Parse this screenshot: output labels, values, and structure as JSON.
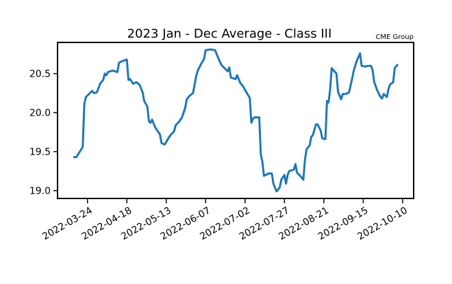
{
  "chart_data": {
    "type": "line",
    "title": "2023 Jan - Dec Average - Class III",
    "annotation": "CME Group",
    "x": [
      "2022-03-15",
      "2022-03-17",
      "2022-03-21",
      "2022-03-22",
      "2022-03-23",
      "2022-03-24",
      "2022-03-27",
      "2022-03-28",
      "2022-03-30",
      "2022-04-01",
      "2022-04-03",
      "2022-04-04",
      "2022-04-05",
      "2022-04-06",
      "2022-04-09",
      "2022-04-12",
      "2022-04-13",
      "2022-04-15",
      "2022-04-18",
      "2022-04-19",
      "2022-04-20",
      "2022-04-22",
      "2022-04-24",
      "2022-04-26",
      "2022-04-28",
      "2022-04-29",
      "2022-05-01",
      "2022-05-02",
      "2022-05-03",
      "2022-05-04",
      "2022-05-06",
      "2022-05-09",
      "2022-05-10",
      "2022-05-12",
      "2022-05-14",
      "2022-05-16",
      "2022-05-18",
      "2022-05-19",
      "2022-05-21",
      "2022-05-23",
      "2022-05-25",
      "2022-05-26",
      "2022-05-28",
      "2022-05-30",
      "2022-06-01",
      "2022-06-02",
      "2022-06-04",
      "2022-06-06",
      "2022-06-07",
      "2022-06-10",
      "2022-06-13",
      "2022-06-15",
      "2022-06-17",
      "2022-06-19",
      "2022-06-21",
      "2022-06-22",
      "2022-06-23",
      "2022-06-26",
      "2022-06-27",
      "2022-06-29",
      "2022-07-01",
      "2022-07-02",
      "2022-07-05",
      "2022-07-06",
      "2022-07-07",
      "2022-07-08",
      "2022-07-11",
      "2022-07-12",
      "2022-07-13",
      "2022-07-14",
      "2022-07-17",
      "2022-07-19",
      "2022-07-20",
      "2022-07-22",
      "2022-07-24",
      "2022-07-25",
      "2022-07-27",
      "2022-07-28",
      "2022-07-29",
      "2022-07-30",
      "2022-08-02",
      "2022-08-03",
      "2022-08-04",
      "2022-08-06",
      "2022-08-08",
      "2022-08-09",
      "2022-08-10",
      "2022-08-12",
      "2022-08-13",
      "2022-08-14",
      "2022-08-16",
      "2022-08-17",
      "2022-08-19",
      "2022-08-20",
      "2022-08-22",
      "2022-08-23",
      "2022-08-24",
      "2022-08-25",
      "2022-08-26",
      "2022-08-29",
      "2022-08-30",
      "2022-09-01",
      "2022-09-02",
      "2022-09-04",
      "2022-09-06",
      "2022-09-08",
      "2022-09-09",
      "2022-09-11",
      "2022-09-13",
      "2022-09-14",
      "2022-09-16",
      "2022-09-18",
      "2022-09-20",
      "2022-09-21",
      "2022-09-22",
      "2022-09-24",
      "2022-09-26",
      "2022-09-27",
      "2022-09-28",
      "2022-09-30",
      "2022-10-01",
      "2022-10-02",
      "2022-10-04",
      "2022-10-05",
      "2022-10-07"
    ],
    "series": [
      {
        "color": "#1f77b4",
        "values": [
          19.43,
          19.43,
          19.56,
          20.11,
          20.2,
          20.22,
          20.28,
          20.25,
          20.26,
          20.37,
          20.42,
          20.5,
          20.48,
          20.52,
          20.54,
          20.52,
          20.64,
          20.66,
          20.68,
          20.42,
          20.43,
          20.37,
          20.39,
          20.36,
          20.26,
          20.15,
          20.08,
          19.89,
          19.87,
          19.91,
          19.81,
          19.72,
          19.61,
          19.59,
          19.66,
          19.72,
          19.76,
          19.84,
          19.88,
          19.94,
          20.06,
          20.17,
          20.22,
          20.25,
          20.47,
          20.54,
          20.62,
          20.69,
          20.8,
          20.81,
          20.8,
          20.7,
          20.61,
          20.57,
          20.53,
          20.58,
          20.45,
          20.43,
          20.48,
          20.38,
          20.33,
          20.29,
          20.19,
          19.87,
          19.92,
          19.94,
          19.94,
          19.47,
          19.37,
          19.19,
          19.22,
          19.22,
          19.09,
          18.99,
          19.04,
          19.14,
          19.2,
          19.09,
          19.2,
          19.25,
          19.27,
          19.34,
          19.23,
          19.19,
          19.14,
          19.39,
          19.53,
          19.58,
          19.69,
          19.71,
          19.85,
          19.85,
          19.77,
          19.67,
          19.66,
          20.15,
          20.13,
          20.3,
          20.57,
          20.5,
          20.27,
          20.17,
          20.24,
          20.24,
          20.26,
          20.44,
          20.54,
          20.67,
          20.76,
          20.6,
          20.59,
          20.6,
          20.6,
          20.54,
          20.39,
          20.28,
          20.2,
          20.18,
          20.24,
          20.2,
          20.3,
          20.36,
          20.39,
          20.57,
          20.62
        ]
      }
    ],
    "xlim": [
      "2022-03-05",
      "2022-10-17"
    ],
    "xticks": [
      "2022-03-24",
      "2022-04-18",
      "2022-05-13",
      "2022-06-07",
      "2022-07-02",
      "2022-07-27",
      "2022-08-21",
      "2022-09-15",
      "2022-10-10"
    ],
    "ylim": [
      18.9,
      20.9
    ],
    "yticks": [
      {
        "value": 19,
        "label": "19.0"
      },
      19.5,
      {
        "value": 20,
        "label": "20.0"
      },
      20.5
    ]
  }
}
